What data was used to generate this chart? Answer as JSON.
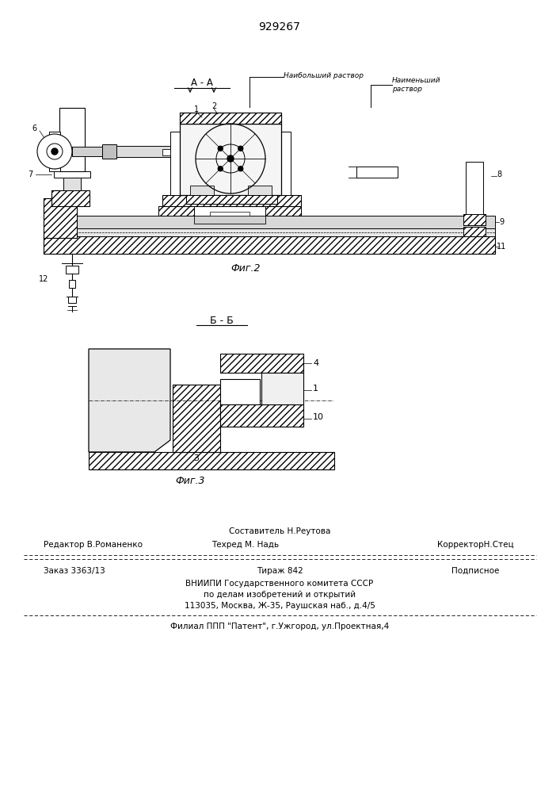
{
  "patent_number": "929267",
  "bg_color": "#ffffff",
  "line_color": "#1a1a1a",
  "fig_width": 7.07,
  "fig_height": 10.0,
  "section_label_fig2": "А - А",
  "caption_fig2": "Фиг.2",
  "caption_fig3": "Фиг.3",
  "section_label_fig3": "Б - Б",
  "label_naib": "Наибольший раствор",
  "label_naim": "Наименьший\nраствор",
  "footer_line1_left": "Редактор В.Романенко",
  "footer_line1_center": "Составитель Н.Реутова",
  "footer_line2_center": "Техред М. Надь",
  "footer_line2_right": "КорректорН.Стец",
  "footer_line3_left": "Заказ 3363/13",
  "footer_line3_center": "Тираж 842",
  "footer_line3_right": "Подписное",
  "footer_line4": "ВНИИПИ Государственного комитета СССР",
  "footer_line5": "по делам изобретений и открытий",
  "footer_line6": "113035, Москва, Ж-35, Раушская наб., д.4/5",
  "footer_last": "Филиал ППП \"Патент\", г.Ужгород, ул.Проектная,4"
}
